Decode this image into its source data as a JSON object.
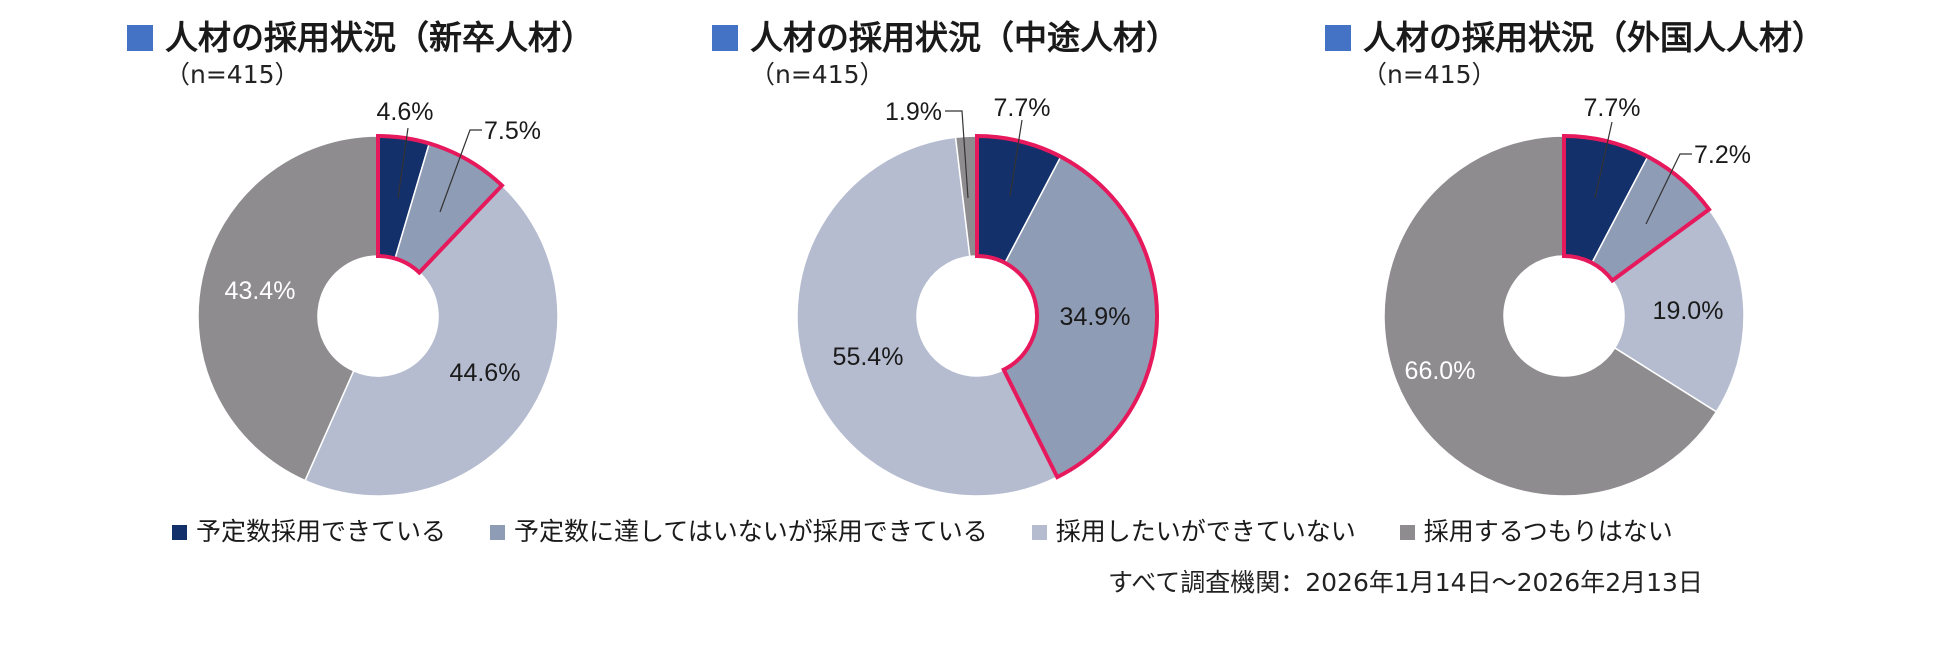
{
  "colors": {
    "title_marker": "#4472C4",
    "highlight_border": "#E6195D",
    "slice_edge": "#ffffff",
    "categories": [
      "#14306A",
      "#8F9CB5",
      "#B5BCD0",
      "#8E8C8F"
    ]
  },
  "legend": {
    "items": [
      "予定数採用できている",
      "予定数に達してはいないが採用できている",
      "採用したいができていない",
      "採用するつもりはない"
    ]
  },
  "source": "すべて調査機関：2026年1月14日～2026年2月13日",
  "chart_data": [
    {
      "type": "pie",
      "title": "人材の採用状況（新卒人材）",
      "subtitle": "（n=415）",
      "categories": [
        "予定数採用できている",
        "予定数に達してはいないが採用できている",
        "採用したいができていない",
        "採用するつもりはない"
      ],
      "values": [
        4.6,
        7.5,
        44.6,
        43.4
      ],
      "labels": [
        "4.6%",
        "7.5%",
        "44.6%",
        "43.4%"
      ],
      "highlighted": [
        0,
        1
      ]
    },
    {
      "type": "pie",
      "title": "人材の採用状況（中途人材）",
      "subtitle": "（n=415）",
      "categories": [
        "予定数採用できている",
        "予定数に達してはいないが採用できている",
        "採用したいができていない",
        "採用するつもりはない"
      ],
      "values": [
        7.7,
        34.9,
        55.4,
        1.9
      ],
      "labels": [
        "7.7%",
        "34.9%",
        "55.4%",
        "1.9%"
      ],
      "highlighted": [
        0,
        1
      ]
    },
    {
      "type": "pie",
      "title": "人材の採用状況（外国人人材）",
      "subtitle": "（n=415）",
      "categories": [
        "予定数採用できている",
        "予定数に達してはいないが採用できている",
        "採用したいができていない",
        "採用するつもりはない"
      ],
      "values": [
        7.7,
        7.2,
        19.0,
        66.0
      ],
      "labels": [
        "7.7%",
        "7.2%",
        "19.0%",
        "66.0%"
      ],
      "highlighted": [
        0,
        1
      ]
    }
  ]
}
